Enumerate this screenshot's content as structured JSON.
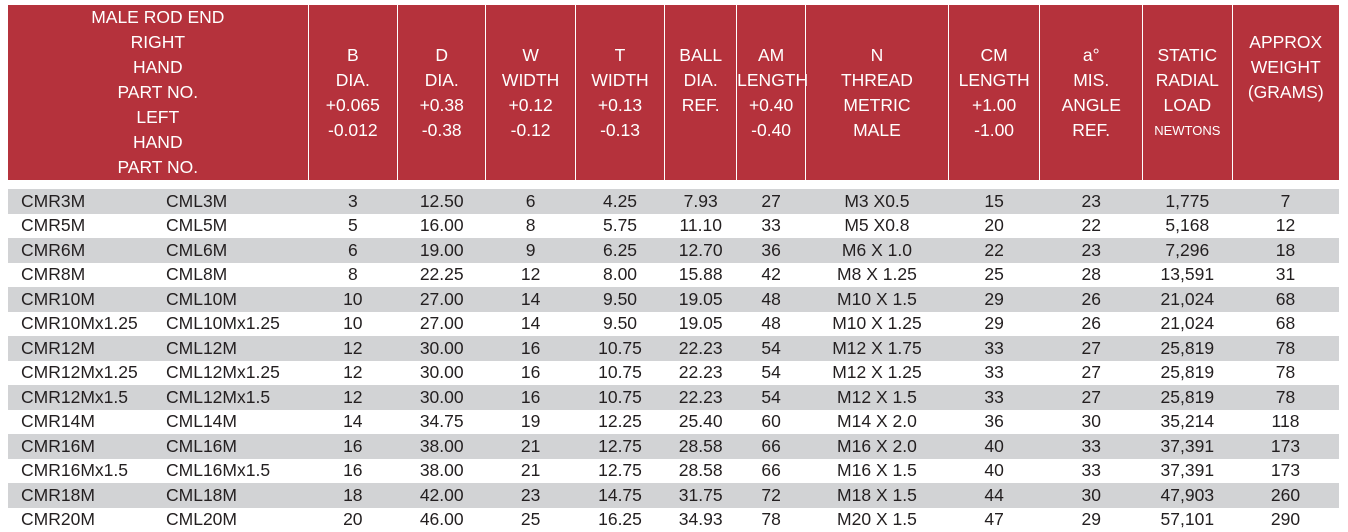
{
  "headers": {
    "male_rod_end": "MALE ROD END",
    "right_hand": [
      "RIGHT",
      "HAND",
      "PART NO."
    ],
    "left_hand": [
      "LEFT",
      "HAND",
      "PART NO."
    ],
    "b": [
      "B",
      "DIA.",
      "+0.065",
      "-0.012"
    ],
    "d": [
      "D",
      "DIA.",
      "+0.38",
      "-0.38"
    ],
    "w": [
      "W",
      "WIDTH",
      "+0.12",
      "-0.12"
    ],
    "t": [
      "T",
      "WIDTH",
      "+0.13",
      "-0.13"
    ],
    "ball": [
      "BALL",
      "DIA.",
      "REF."
    ],
    "am": [
      "AM",
      "LENGTH",
      "+0.40",
      "-0.40"
    ],
    "n": [
      "N",
      "THREAD",
      "METRIC",
      "MALE"
    ],
    "cm": [
      "CM",
      "LENGTH",
      "+1.00",
      "-1.00"
    ],
    "angle": [
      "a°",
      "MIS.",
      "ANGLE",
      "REF."
    ],
    "static": [
      "STATIC",
      "RADIAL",
      "LOAD",
      "NEWTONS"
    ],
    "weight": [
      "APPROX",
      "WEIGHT",
      "(GRAMS)"
    ]
  },
  "colors": {
    "header_bg": "#b5323c",
    "stripe": "#d2d3d5",
    "text": "#231f20"
  },
  "rows": [
    [
      "CMR3M",
      "CML3M",
      "3",
      "12.50",
      "6",
      "4.25",
      "7.93",
      "27",
      "M3 X0.5",
      "15",
      "23",
      "1,775",
      "7"
    ],
    [
      "CMR5M",
      "CML5M",
      "5",
      "16.00",
      "8",
      "5.75",
      "11.10",
      "33",
      "M5 X0.8",
      "20",
      "22",
      "5,168",
      "12"
    ],
    [
      "CMR6M",
      "CML6M",
      "6",
      "19.00",
      "9",
      "6.25",
      "12.70",
      "36",
      "M6 X 1.0",
      "22",
      "23",
      "7,296",
      "18"
    ],
    [
      "CMR8M",
      "CML8M",
      "8",
      "22.25",
      "12",
      "8.00",
      "15.88",
      "42",
      "M8 X 1.25",
      "25",
      "28",
      "13,591",
      "31"
    ],
    [
      "CMR10M",
      "CML10M",
      "10",
      "27.00",
      "14",
      "9.50",
      "19.05",
      "48",
      "M10 X 1.5",
      "29",
      "26",
      "21,024",
      "68"
    ],
    [
      "CMR10Mx1.25",
      "CML10Mx1.25",
      "10",
      "27.00",
      "14",
      "9.50",
      "19.05",
      "48",
      "M10 X 1.25",
      "29",
      "26",
      "21,024",
      "68"
    ],
    [
      "CMR12M",
      "CML12M",
      "12",
      "30.00",
      "16",
      "10.75",
      "22.23",
      "54",
      "M12 X 1.75",
      "33",
      "27",
      "25,819",
      "78"
    ],
    [
      "CMR12Mx1.25",
      "CML12Mx1.25",
      "12",
      "30.00",
      "16",
      "10.75",
      "22.23",
      "54",
      "M12 X 1.25",
      "33",
      "27",
      "25,819",
      "78"
    ],
    [
      "CMR12Mx1.5",
      "CML12Mx1.5",
      "12",
      "30.00",
      "16",
      "10.75",
      "22.23",
      "54",
      "M12 X 1.5",
      "33",
      "27",
      "25,819",
      "78"
    ],
    [
      "CMR14M",
      "CML14M",
      "14",
      "34.75",
      "19",
      "12.25",
      "25.40",
      "60",
      "M14 X 2.0",
      "36",
      "30",
      "35,214",
      "118"
    ],
    [
      "CMR16M",
      "CML16M",
      "16",
      "38.00",
      "21",
      "12.75",
      "28.58",
      "66",
      "M16 X 2.0",
      "40",
      "33",
      "37,391",
      "173"
    ],
    [
      "CMR16Mx1.5",
      "CML16Mx1.5",
      "16",
      "38.00",
      "21",
      "12.75",
      "28.58",
      "66",
      "M16 X 1.5",
      "40",
      "33",
      "37,391",
      "173"
    ],
    [
      "CMR18M",
      "CML18M",
      "18",
      "42.00",
      "23",
      "14.75",
      "31.75",
      "72",
      "M18 X 1.5",
      "44",
      "30",
      "47,903",
      "260"
    ],
    [
      "CMR20M",
      "CML20M",
      "20",
      "46.00",
      "25",
      "16.25",
      "34.93",
      "78",
      "M20 X 1.5",
      "47",
      "29",
      "57,101",
      "290"
    ]
  ]
}
